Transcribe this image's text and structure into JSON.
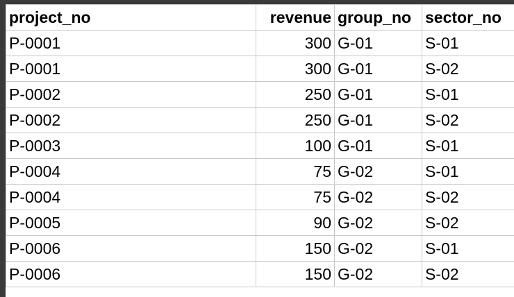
{
  "table": {
    "header": [
      "project_no",
      "revenue",
      "group_no",
      "sector_no"
    ],
    "rows": [
      [
        "P-0001",
        300,
        "G-01",
        "S-01"
      ],
      [
        "P-0001",
        300,
        "G-01",
        "S-02"
      ],
      [
        "P-0002",
        250,
        "G-01",
        "S-01"
      ],
      [
        "P-0002",
        250,
        "G-01",
        "S-02"
      ],
      [
        "P-0003",
        100,
        "G-01",
        "S-01"
      ],
      [
        "P-0004",
        75,
        "G-02",
        "S-01"
      ],
      [
        "P-0004",
        75,
        "G-02",
        "S-02"
      ],
      [
        "P-0005",
        90,
        "G-02",
        "S-02"
      ],
      [
        "P-0006",
        150,
        "G-02",
        "S-01"
      ],
      [
        "P-0006",
        150,
        "G-02",
        "S-02"
      ]
    ]
  }
}
